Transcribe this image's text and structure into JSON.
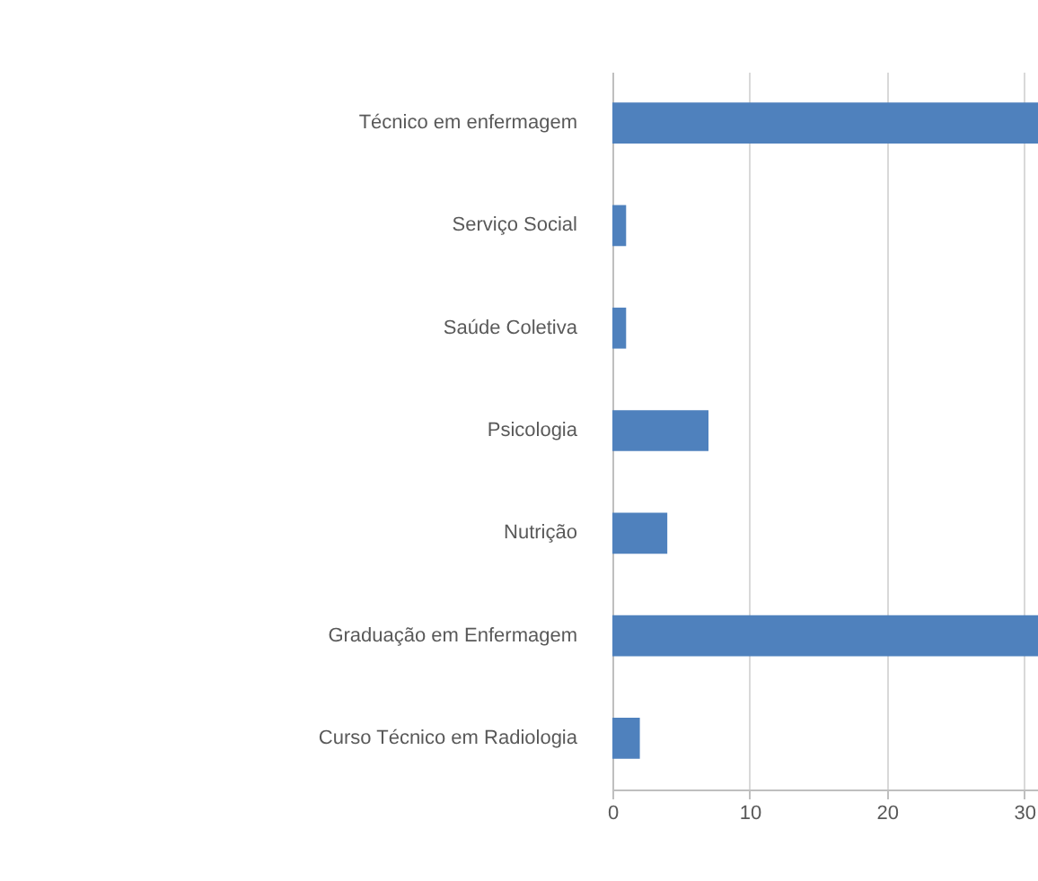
{
  "chart_data": {
    "type": "bar",
    "orientation": "horizontal",
    "categories": [
      "Técnico em enfermagem",
      "Serviço Social",
      "Saúde Coletiva",
      "Psicologia",
      "Nutrição",
      "Graduação em Enfermagem",
      "Curso Técnico em Radiologia"
    ],
    "values": [
      31,
      1,
      1,
      7,
      4,
      31,
      2
    ],
    "color": "#4f81bd",
    "xlim": [
      0,
      31
    ],
    "xticks": [
      0,
      10,
      20,
      30
    ],
    "grid": "x"
  }
}
